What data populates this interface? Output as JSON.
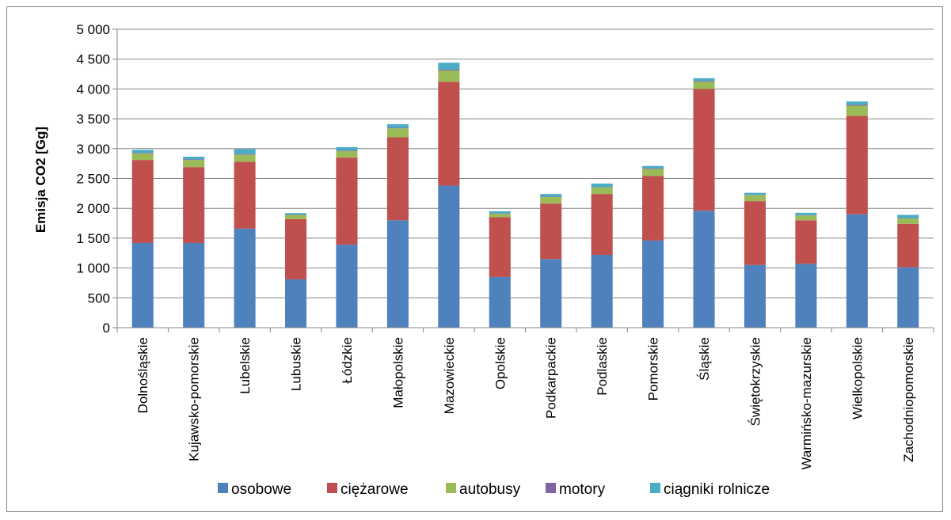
{
  "chart_data": {
    "type": "bar",
    "stacked": true,
    "ylabel": "Emisja CO2 [Gg]",
    "ylim": [
      0,
      5000
    ],
    "ytick_step": 500,
    "ytick_labels": [
      "0",
      "500",
      "1 000",
      "1 500",
      "2 000",
      "2 500",
      "3 000",
      "3 500",
      "4 000",
      "4 500",
      "5 000"
    ],
    "grid": true,
    "legend_position": "bottom",
    "categories": [
      "Dolnośląskie",
      "Kujawsko-pomorskie",
      "Lubelskie",
      "Lubuskie",
      "Łódzkie",
      "Małopolskie",
      "Mazowieckie",
      "Opolskie",
      "Podkarpackie",
      "Podlaskie",
      "Pomorskie",
      "Śląskie",
      "Świętokrzyskie",
      "Warmińsko-mazurskie",
      "Wielkopolskie",
      "Zachodniopomorskie"
    ],
    "series": [
      {
        "name": "osobowe",
        "color": "#4F81BD",
        "values": [
          1420,
          1420,
          1660,
          810,
          1390,
          1800,
          2380,
          850,
          1150,
          1220,
          1460,
          1960,
          1050,
          1070,
          1900,
          1010
        ]
      },
      {
        "name": "ciężarowe",
        "color": "#C0504D",
        "values": [
          1390,
          1270,
          1120,
          1010,
          1460,
          1390,
          1740,
          1000,
          930,
          1020,
          1080,
          2040,
          1070,
          730,
          1650,
          730
        ]
      },
      {
        "name": "autobusy",
        "color": "#9BBB59",
        "values": [
          110,
          120,
          120,
          70,
          110,
          150,
          190,
          60,
          110,
          110,
          120,
          120,
          100,
          80,
          170,
          90
        ]
      },
      {
        "name": "motory",
        "color": "#8064A2",
        "values": [
          10,
          10,
          10,
          5,
          10,
          10,
          15,
          5,
          5,
          5,
          10,
          15,
          5,
          5,
          15,
          5
        ]
      },
      {
        "name": "ciągniki rolnicze",
        "color": "#4BACC6",
        "values": [
          50,
          45,
          85,
          25,
          55,
          60,
          115,
          35,
          45,
          60,
          40,
          45,
          35,
          40,
          55,
          55
        ]
      }
    ]
  },
  "colors": {
    "axis": "#868686",
    "grid": "#868686",
    "frame": "#868686"
  }
}
